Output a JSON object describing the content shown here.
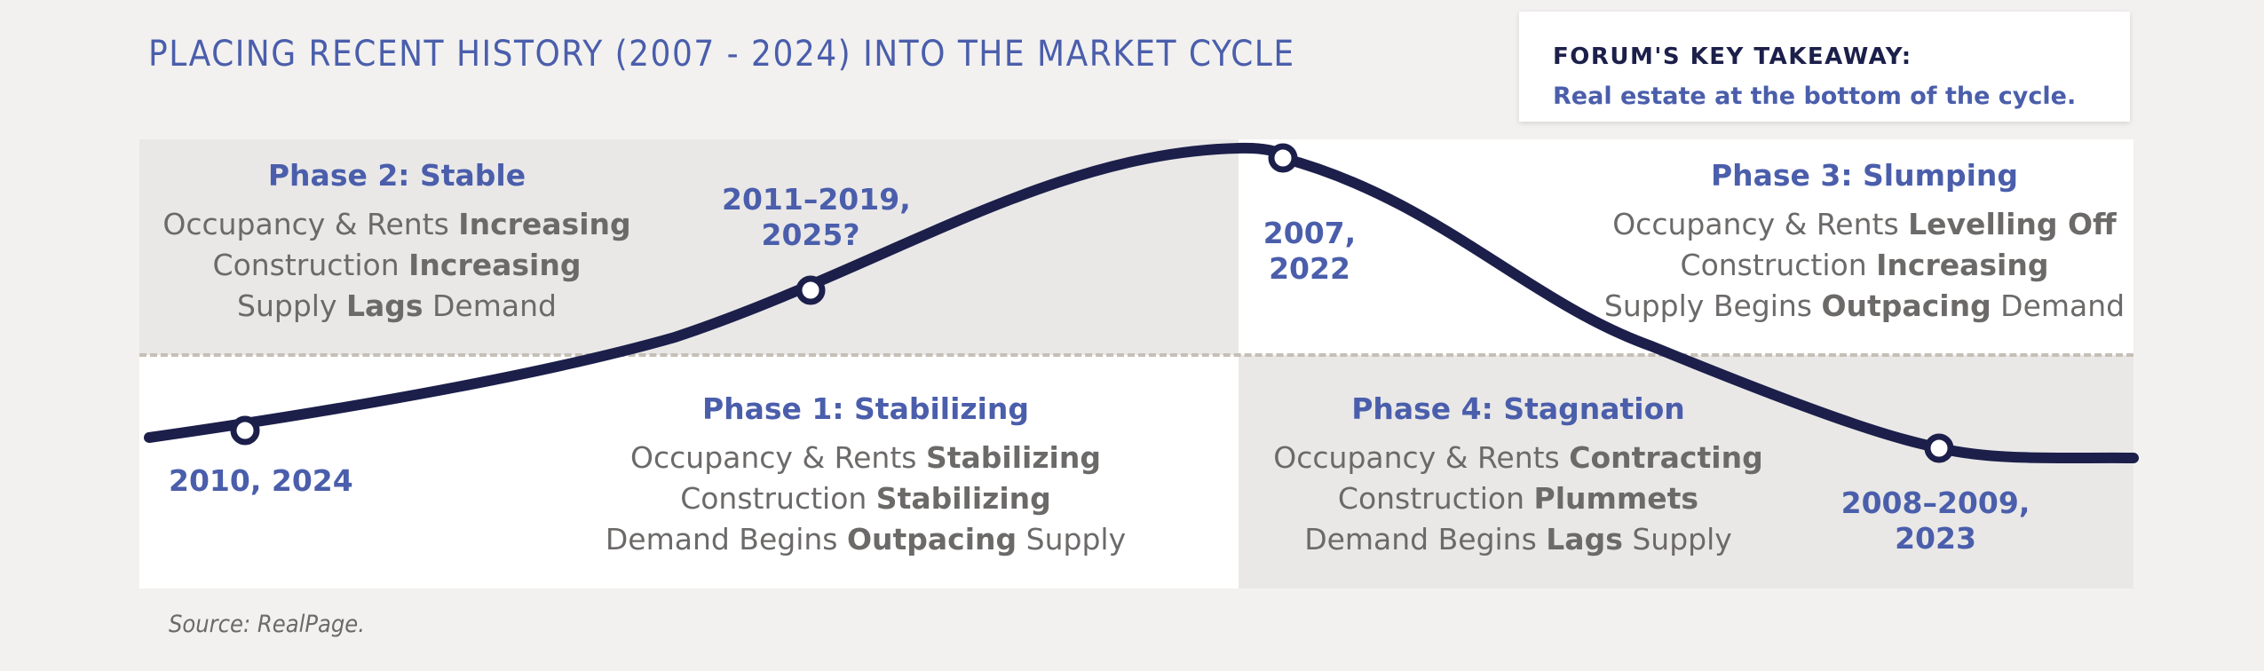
{
  "title": "PLACING RECENT HISTORY (2007 - 2024) INTO THE MARKET CYCLE",
  "takeaway": {
    "heading": "FORUM'S KEY TAKEAWAY:",
    "text": "Real estate at the bottom of the cycle."
  },
  "phases": {
    "phase2": {
      "title": "Phase 2: Stable",
      "lines": [
        {
          "pre": "Occupancy & Rents ",
          "bold": "Increasing",
          "post": ""
        },
        {
          "pre": "Construction ",
          "bold": "Increasing",
          "post": ""
        },
        {
          "pre": "Supply ",
          "bold": "Lags",
          "post": " Demand"
        }
      ]
    },
    "phase3": {
      "title": "Phase 3: Slumping",
      "lines": [
        {
          "pre": "Occupancy & Rents ",
          "bold": "Levelling Off",
          "post": ""
        },
        {
          "pre": "Construction ",
          "bold": "Increasing",
          "post": ""
        },
        {
          "pre": "Supply Begins ",
          "bold": "Outpacing",
          "post": " Demand"
        }
      ]
    },
    "phase1": {
      "title": "Phase 1: Stabilizing",
      "lines": [
        {
          "pre": "Occupancy & Rents ",
          "bold": "Stabilizing",
          "post": ""
        },
        {
          "pre": "Construction ",
          "bold": "Stabilizing",
          "post": ""
        },
        {
          "pre": "Demand Begins ",
          "bold": "Outpacing",
          "post": " Supply"
        }
      ]
    },
    "phase4": {
      "title": "Phase 4: Stagnation",
      "lines": [
        {
          "pre": "Occupancy & Rents ",
          "bold": "Contracting",
          "post": ""
        },
        {
          "pre": "Construction ",
          "bold": "Plummets",
          "post": ""
        },
        {
          "pre": "Demand Begins ",
          "bold": "Lags",
          "post": " Supply"
        }
      ]
    }
  },
  "years": {
    "bottom_left": "2010, 2024",
    "rising_line1": "2011–2019,",
    "rising_line2": "2025?",
    "peak_line1": "2007,",
    "peak_line2": "2022",
    "falling_line1": "2008–2009,",
    "falling_line2": "2023"
  },
  "source": "Source: RealPage.",
  "colors": {
    "title_blue": "#4a5eab",
    "curve_navy": "#1c1f4a",
    "body_gray": "#6c6a69",
    "panel_gray": "#e9e8e7",
    "dash": "#c5bfb6"
  }
}
